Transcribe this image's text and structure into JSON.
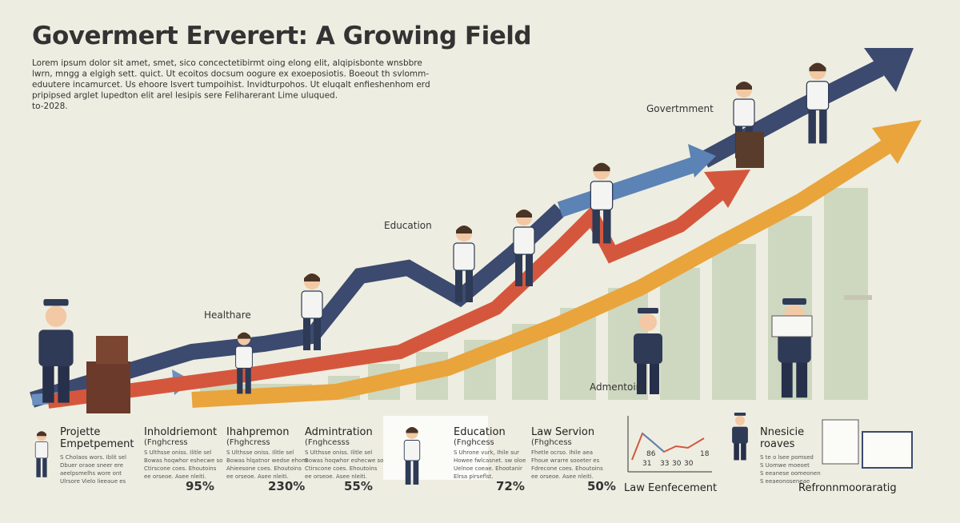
{
  "header": {
    "title": "Govermert Erverert: A Growing Field",
    "intro": [
      "Lorem ipsum dolor sit amet, smet, sico concectetibirmt oing elong elit, alqipisbonte wnsbbre",
      "lwrn, mngg a elgigh sett. quict. Ut ecoitos docsum oogure ex exoeposiotis. Boeout th svlomm-",
      "eduutere incamurcet. Us ehoore lsvert tumpoihist. Invidturpohos. Ut eluqalt enfieshenhom erd",
      "pripipsed arglet lupedton elit arel lesipis sere Feliharerant Lime uluqued.",
      "to-2028."
    ]
  },
  "scene_labels": [
    "Govertmment",
    "Education",
    "Healthare",
    "Admentoin"
  ],
  "panels": [
    {
      "title": [
        "Projette",
        "Empetpement"
      ],
      "body": [
        "S Cholaos wors. Iblit sel",
        "Dbuer oraoe sneer ere",
        "aeelpsmelhs wore ont",
        "Ulrsore Vielo lieeaue es"
      ]
    },
    {
      "title": [
        "Inholdriemont"
      ],
      "subtitle": "(Fnghcress",
      "body": [
        "S Ulthsse oniss. Ilitle sel",
        "Bowas hoqwhor eshecwe so",
        "Ctirscone coes. Ehoutoins",
        "ee orseoe. Asee nleiti."
      ],
      "value": "95%"
    },
    {
      "title": [
        "Ihahpremon"
      ],
      "subtitle": "(Fhghcress",
      "body": [
        "S Ulthsse oniss. Ilitle sel",
        "Bowas hlqatnor wedse ehom",
        "Ahieesone coes. Ehoutoins",
        "ee orseoe. Asee nleiti."
      ],
      "value": "230%"
    },
    {
      "title": [
        "Admintration"
      ],
      "subtitle": "(Fnghcesss",
      "body": [
        "S Ulthsse oniss. Ilitle sel",
        "Bowas hoqwhor eshecwe so",
        "Ctirscone coes. Ehoutoins",
        "ee orseoe. Asee nleiti."
      ],
      "value": "55%"
    },
    {
      "title": [
        "Education"
      ],
      "subtitle": "(Fnghcess",
      "body": [
        "S Uhrone vurk, Ihile sur",
        "Howee fwlcasnet. sw oloe",
        "Uelnoe coeae. Ehootanir",
        "Elrsa pirseflst."
      ],
      "value": "72%"
    },
    {
      "title": [
        "Law Servion"
      ],
      "subtitle": "(Fhghcess",
      "body": [
        "Fhetle ocrso. Ihile aea",
        "Fhoue wrarre sooeter es",
        "Fdrecone coes. Ehoutoins",
        "ee orseoe. Asee nleiti."
      ],
      "value": "50%"
    },
    {
      "title": [
        "Nnesicie",
        "roaves"
      ],
      "body": [
        "S te o lsee pomsed",
        "S Uomwe moeoet",
        "S eeanese oomeonen",
        "S eeaeonoseneae"
      ]
    }
  ],
  "mini_chart": {
    "labels": [
      "86",
      "31",
      "33",
      "30",
      "30",
      "18"
    ],
    "caption": "Law Eenfecement"
  },
  "footer": "Refronnmooraratig"
}
